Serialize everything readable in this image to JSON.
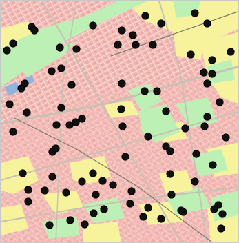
{
  "map": {
    "colors": {
      "background": "#ffffff",
      "residential": "#f2b9b3",
      "residential_dark": "#e89d98",
      "commercial": "#f7f39c",
      "park": "#bdf0b4",
      "water": "#8fb4de",
      "road": "#c7c0b4",
      "rail": "#7a7a6e",
      "marker": "#111111"
    },
    "marker_count": 84,
    "marker_icon": "black-circle-marker"
  }
}
